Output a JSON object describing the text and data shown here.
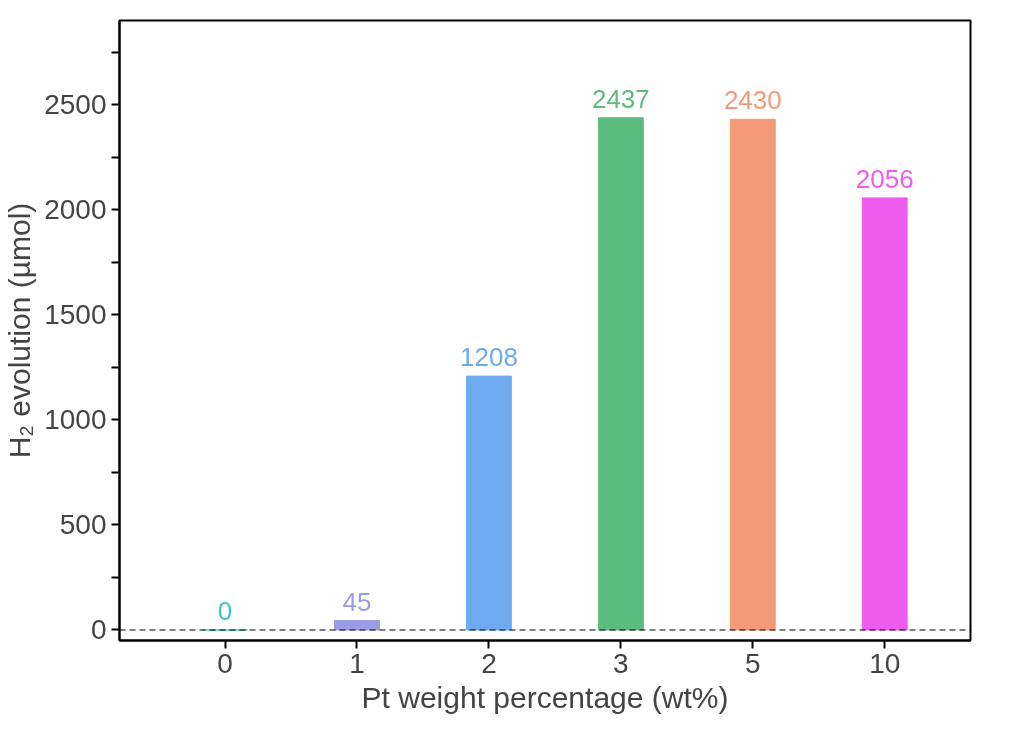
{
  "chart_data": {
    "type": "bar",
    "xlabel": "Pt weight percentage (wt%)",
    "ylabel": "H₂ evolution (µmol)",
    "categories": [
      "0",
      "1",
      "2",
      "3",
      "5",
      "10"
    ],
    "values": [
      0,
      45,
      1208,
      2437,
      2430,
      2056
    ],
    "colors": [
      "#3cc8c0",
      "#9c9ce6",
      "#6eaaf0",
      "#5cbc80",
      "#f59a78",
      "#ee5cee"
    ],
    "data_labels": true,
    "ylim": [
      -50,
      2900
    ],
    "yticks": [
      0,
      {
        "value": 250,
        "label": null
      },
      500,
      {
        "value": 750,
        "label": null
      },
      1000,
      {
        "value": 1250,
        "label": null
      },
      1500,
      {
        "value": 1750,
        "label": null
      },
      2000,
      {
        "value": 2250,
        "label": null
      },
      2500,
      {
        "value": 2750,
        "label": null
      }
    ],
    "ref_lines": [
      {
        "axis": "y",
        "value": 0,
        "label": null,
        "color": "#000000",
        "line_style": "dashed"
      }
    ],
    "grid": false
  }
}
